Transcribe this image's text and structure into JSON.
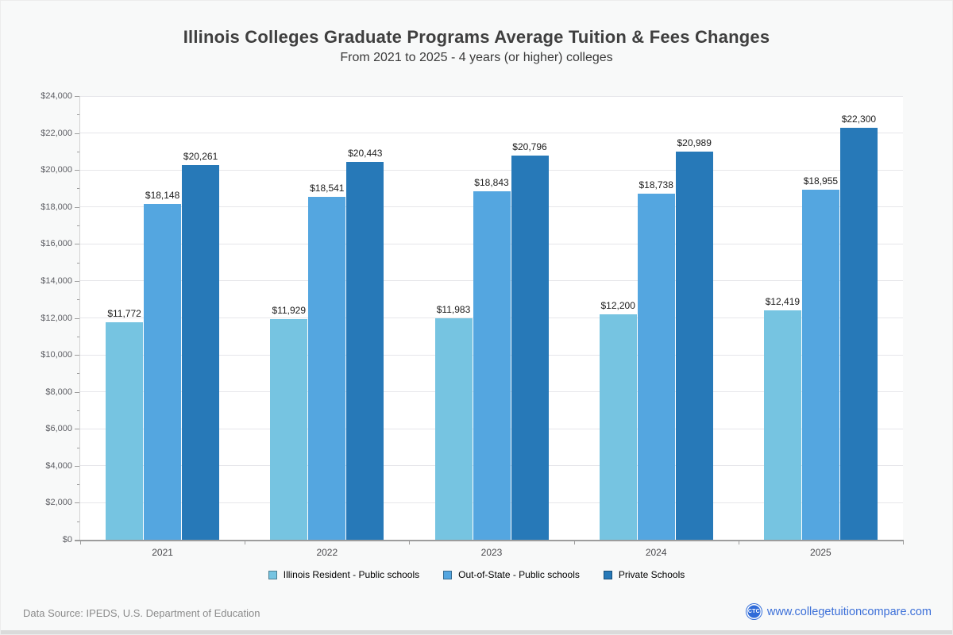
{
  "chart_data": {
    "type": "bar",
    "title": "Illinois Colleges Graduate Programs Average Tuition & Fees Changes",
    "subtitle": "From 2021 to 2025 - 4 years (or higher) colleges",
    "categories": [
      "2021",
      "2022",
      "2023",
      "2024",
      "2025"
    ],
    "series": [
      {
        "name": "Illinois Resident - Public schools",
        "color": "#76c4e1",
        "values": [
          11772,
          11929,
          11983,
          12200,
          12419
        ]
      },
      {
        "name": "Out-of-State - Public schools",
        "color": "#54a6e0",
        "values": [
          18148,
          18541,
          18843,
          18738,
          18955
        ]
      },
      {
        "name": "Private Schools",
        "color": "#2779b8",
        "values": [
          20261,
          20443,
          20796,
          20989,
          22300
        ]
      }
    ],
    "ylim": [
      0,
      24000
    ],
    "y_tick_step": 2000,
    "y_minor_tick_step": 1000,
    "grid": true,
    "legend_position": "bottom",
    "value_prefix": "$",
    "value_labels": [
      [
        "$11,772",
        "$11,929",
        "$11,983",
        "$12,200",
        "$12,419"
      ],
      [
        "$18,148",
        "$18,541",
        "$18,843",
        "$18,738",
        "$18,955"
      ],
      [
        "$20,261",
        "$20,443",
        "$20,796",
        "$20,989",
        "$22,300"
      ]
    ],
    "y_tick_labels": [
      "$0",
      "$2,000",
      "$4,000",
      "$6,000",
      "$8,000",
      "$10,000",
      "$12,000",
      "$14,000",
      "$16,000",
      "$18,000",
      "$20,000",
      "$22,000",
      "$24,000"
    ]
  },
  "footer": {
    "source": "Data Source: IPEDS, U.S. Department of Education",
    "logo_text": "CTC",
    "site_url": "www.collegetuitioncompare.com"
  },
  "colors": {
    "page_bg": "#f8f9f9",
    "plot_bg": "#ffffff",
    "gridline": "#e6e6ea",
    "link": "#3b6fd8",
    "logo_bg": "#2f6bd8"
  }
}
